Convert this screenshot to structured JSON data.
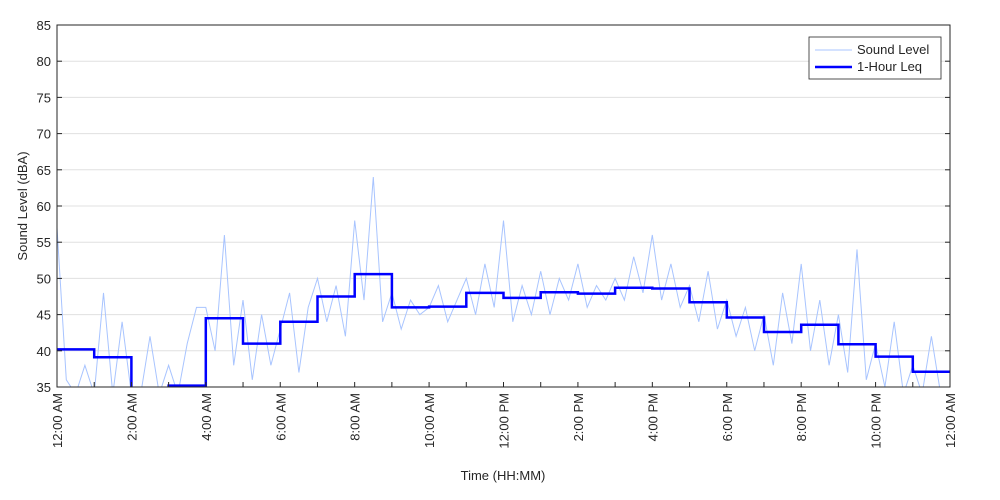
{
  "chart_data": {
    "type": "line",
    "title": "",
    "xlabel": "Time (HH:MM)",
    "ylabel": "Sound Level (dBA)",
    "ylim": [
      35,
      85
    ],
    "xlim_hours": [
      0,
      24
    ],
    "yticks": [
      35,
      40,
      45,
      50,
      55,
      60,
      65,
      70,
      75,
      80,
      85
    ],
    "xtick_labels": [
      "12:00 AM",
      "2:00 AM",
      "4:00 AM",
      "6:00 AM",
      "8:00 AM",
      "10:00 AM",
      "12:00 PM",
      "2:00 PM",
      "4:00 PM",
      "6:00 PM",
      "8:00 PM",
      "10:00 PM",
      "12:00 AM"
    ],
    "grid": "horizontal",
    "legend_position": "top-right",
    "series": [
      {
        "name": "Sound Level",
        "color": "#a8c4ff",
        "interval_minutes": 15,
        "values": [
          57,
          36,
          33,
          38,
          33,
          48,
          34,
          44,
          33,
          32,
          42,
          33,
          38,
          33,
          41,
          46,
          46,
          40,
          56,
          38,
          47,
          36,
          45,
          38,
          43,
          48,
          37,
          46,
          50,
          44,
          49,
          42,
          58,
          47,
          64,
          44,
          48,
          43,
          47,
          45,
          46,
          49,
          44,
          47,
          50,
          45,
          52,
          46,
          58,
          44,
          49,
          45,
          51,
          45,
          50,
          47,
          52,
          46,
          49,
          47,
          50,
          47,
          53,
          48,
          56,
          47,
          52,
          46,
          49,
          44,
          51,
          43,
          47,
          42,
          46,
          40,
          45,
          38,
          48,
          41,
          52,
          40,
          47,
          38,
          45,
          37,
          54,
          36,
          41,
          35,
          44,
          34,
          38,
          34,
          42,
          34
        ]
      },
      {
        "name": "1-Hour Leq",
        "color": "#0000ff",
        "interval_minutes": 60,
        "values": [
          40.2,
          39.1,
          34.0,
          35.2,
          44.5,
          41.0,
          44.0,
          47.5,
          50.6,
          46.0,
          46.1,
          48.0,
          47.3,
          48.1,
          47.9,
          48.7,
          48.6,
          46.7,
          44.6,
          42.6,
          43.6,
          40.9,
          39.2,
          37.1
        ]
      }
    ]
  }
}
